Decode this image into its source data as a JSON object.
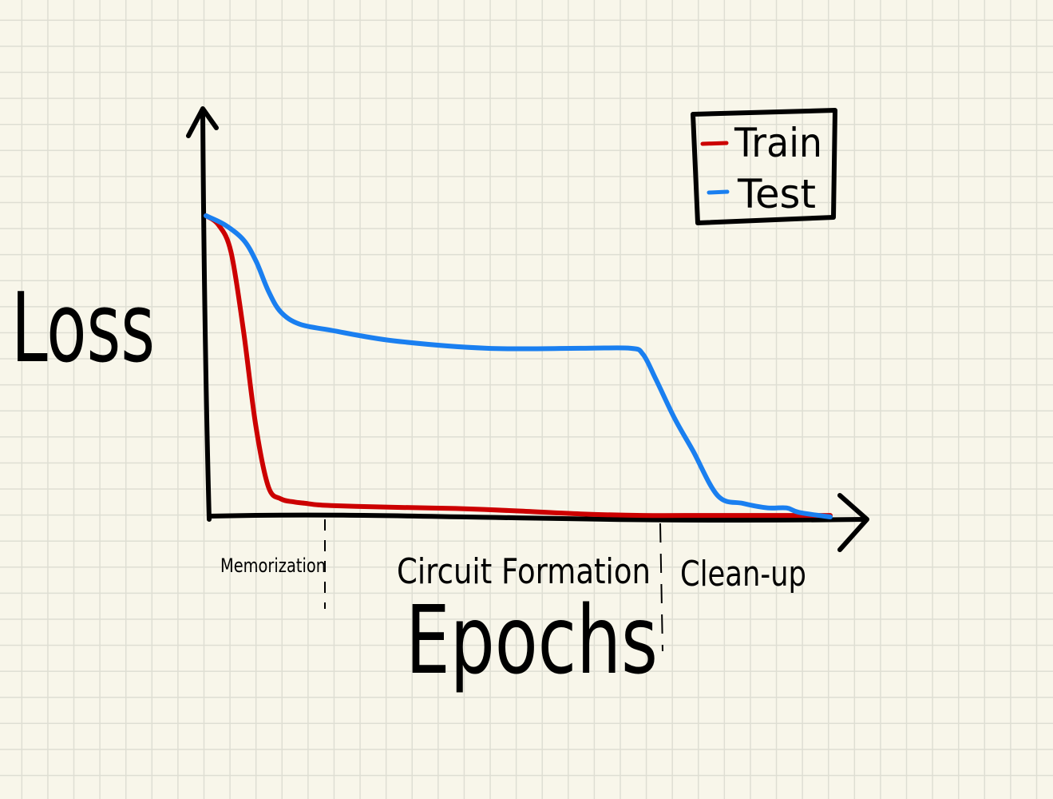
{
  "chart_data": {
    "type": "line",
    "title": "",
    "xlabel": "Epochs",
    "ylabel": "Loss",
    "xlim": [
      0,
      100
    ],
    "ylim": [
      0,
      100
    ],
    "grid": true,
    "legend": {
      "position": "top-right",
      "entries": [
        "Train",
        "Test"
      ]
    },
    "series": [
      {
        "name": "Train",
        "color": "#cc0000",
        "x": [
          0,
          2,
          4,
          6,
          8,
          10,
          12,
          14,
          16,
          18,
          20,
          24,
          30,
          40,
          50,
          60,
          70,
          80,
          90,
          100
        ],
        "y": [
          100,
          97,
          88,
          62,
          30,
          10,
          6,
          5,
          4.5,
          4,
          3.8,
          3.5,
          3.2,
          2.8,
          2,
          1,
          0.5,
          0.5,
          0.5,
          0.5
        ]
      },
      {
        "name": "Test",
        "color": "#1a7ff0",
        "x": [
          0,
          3,
          6,
          8,
          10,
          12,
          15,
          20,
          30,
          45,
          60,
          68,
          70,
          72,
          75,
          78,
          82,
          86,
          90,
          93,
          95,
          100
        ],
        "y": [
          100,
          97,
          92,
          85,
          75,
          68,
          64,
          62,
          58.5,
          56,
          56,
          56,
          54,
          46,
          33,
          22,
          7,
          4.5,
          3,
          3,
          1.5,
          0
        ]
      }
    ],
    "phases": [
      {
        "label": "Memorization",
        "x_end": 19
      },
      {
        "label": "Circuit Formation",
        "x_end": 73
      },
      {
        "label": "Clean-up"
      }
    ]
  }
}
